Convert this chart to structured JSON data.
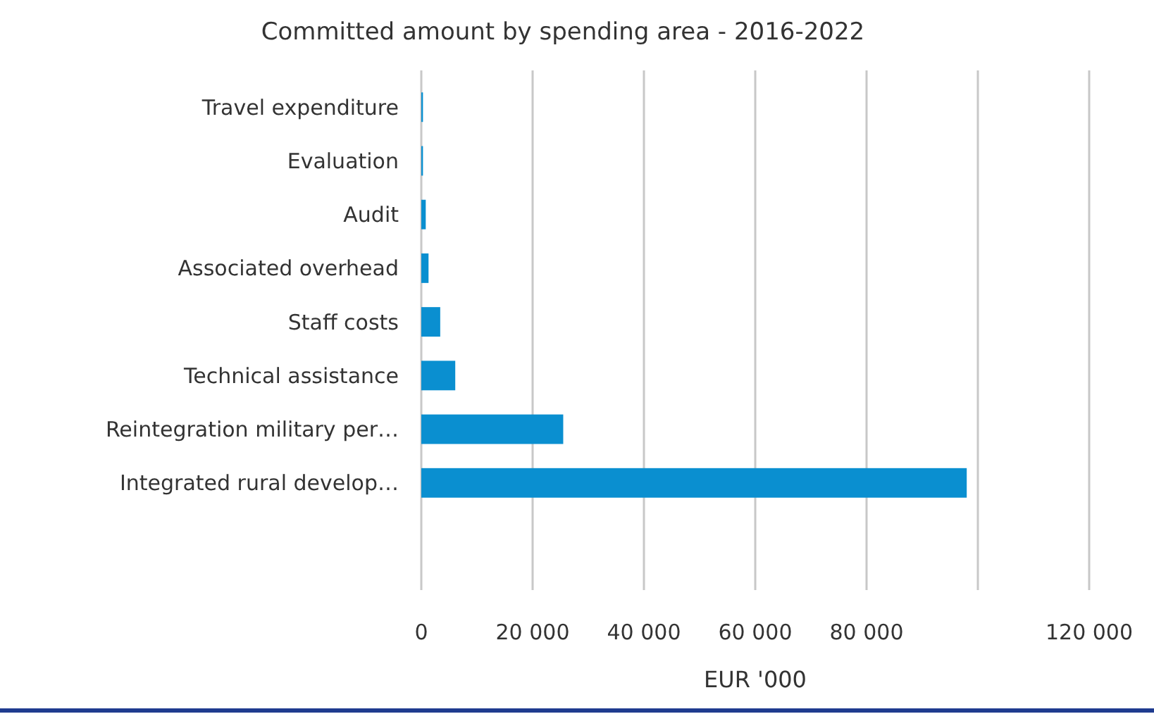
{
  "chart_data": {
    "type": "bar",
    "orientation": "horizontal",
    "title": "Committed amount by spending area - 2016-2022",
    "xlabel": "EUR '000",
    "categories": [
      "Travel expenditure",
      "Evaluation",
      "Audit",
      "Associated overhead",
      "Staff costs",
      "Technical assistance",
      "Reintegration military per…",
      "Integrated rural develop…"
    ],
    "values": [
      300,
      300,
      800,
      1300,
      3400,
      6100,
      25500,
      98000
    ],
    "color": "#0a8fd0",
    "xlim": [
      0,
      120000
    ],
    "xticks": [
      0,
      {
        "value": 20000,
        "label": "20 000"
      },
      {
        "value": 40000,
        "label": "40 000"
      },
      {
        "value": 60000,
        "label": "60 000"
      },
      {
        "value": 80000,
        "label": "80 000"
      },
      {
        "value": 100000,
        "label": null
      },
      {
        "value": 120000,
        "label": "120 000"
      }
    ],
    "grid": "x"
  }
}
